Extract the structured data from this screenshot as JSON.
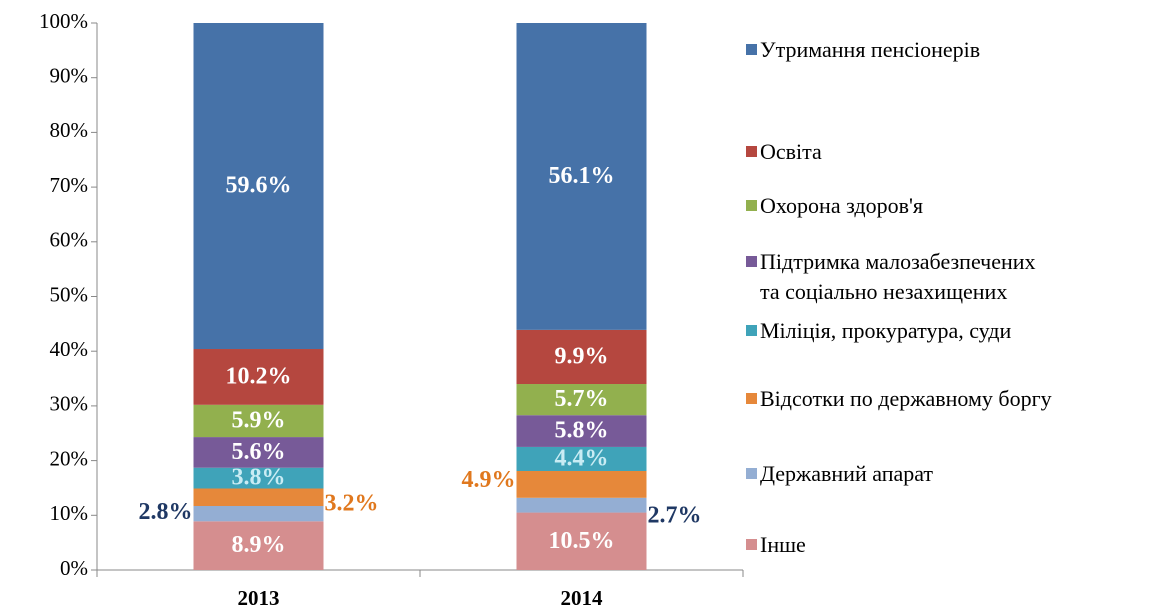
{
  "chart_data": {
    "type": "stacked_bar_100",
    "categories": [
      "2013",
      "2014"
    ],
    "series": [
      {
        "name": "Інше",
        "color": "#d58e8f",
        "values": [
          8.9,
          10.5
        ],
        "value_labels": [
          "8.9%",
          "10.5%"
        ]
      },
      {
        "name": "Державний апарат",
        "color": "#94aed3",
        "values": [
          2.8,
          2.7
        ],
        "value_labels": [
          "2.8%",
          "2.7%"
        ]
      },
      {
        "name": "Відсотки по державному боргу",
        "color": "#e6883a",
        "values": [
          3.2,
          4.9
        ],
        "value_labels": [
          "3.2%",
          "4.9%"
        ]
      },
      {
        "name": "Міліція, прокуратура, суди",
        "color": "#3fa3b9",
        "values": [
          3.8,
          4.4
        ],
        "value_labels": [
          "3.8%",
          "4.4%"
        ]
      },
      {
        "name": "Підтримка малозабезпечених\nта соціально незахищених",
        "color": "#775a98",
        "values": [
          5.6,
          5.8
        ],
        "value_labels": [
          "5.6%",
          "5.8%"
        ]
      },
      {
        "name": "Охорона здоров'я",
        "color": "#92b04e",
        "values": [
          5.9,
          5.7
        ],
        "value_labels": [
          "5.9%",
          "5.7%"
        ]
      },
      {
        "name": "Освіта",
        "color": "#b5473f",
        "values": [
          10.2,
          9.9
        ],
        "value_labels": [
          "10.2%",
          "9.9%"
        ]
      },
      {
        "name": "Утримання пенсіонерів",
        "color": "#4672a8",
        "values": [
          59.6,
          56.1
        ],
        "value_labels": [
          "59.6%",
          "56.1%"
        ]
      }
    ],
    "ylim": [
      0,
      100
    ],
    "yticks": [
      {
        "value": 0,
        "label": "0%"
      },
      {
        "value": 10,
        "label": "10%"
      },
      {
        "value": 20,
        "label": "20%"
      },
      {
        "value": 30,
        "label": "30%"
      },
      {
        "value": 40,
        "label": "40%"
      },
      {
        "value": 50,
        "label": "50%"
      },
      {
        "value": 60,
        "label": "60%"
      },
      {
        "value": 70,
        "label": "70%"
      },
      {
        "value": 80,
        "label": "80%"
      },
      {
        "value": 90,
        "label": "90%"
      },
      {
        "value": 100,
        "label": "100%"
      }
    ],
    "grid": false,
    "legend": "right"
  }
}
